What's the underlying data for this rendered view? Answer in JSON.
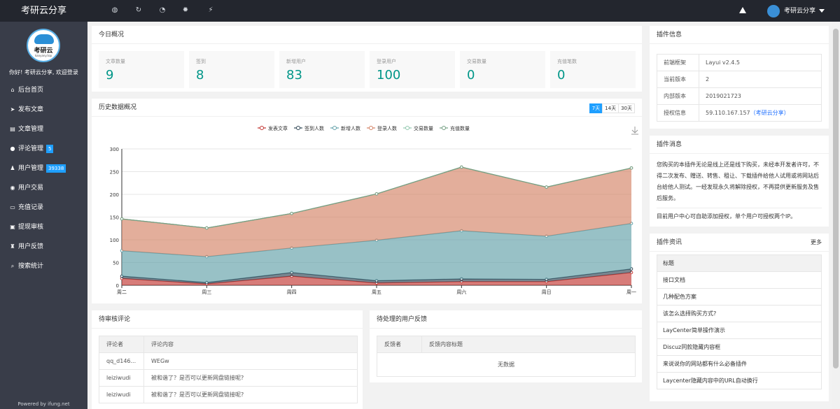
{
  "app": {
    "brand": "考研云分享",
    "user": "考研云分享",
    "powered": "Powered by ifung.net"
  },
  "topnav": {
    "icons": [
      "globe-icon",
      "refresh-icon",
      "dashboard-icon",
      "settings-icon",
      "plugin-icon"
    ]
  },
  "sidebar": {
    "logo_text": "考研云",
    "logo_sub": "kaoyany.top",
    "welcome": "你好! 考研云分享, 欢迎登录",
    "items": [
      {
        "icon": "home-icon",
        "label": "后台首页"
      },
      {
        "icon": "send-icon",
        "label": "发布文章"
      },
      {
        "icon": "book-icon",
        "label": "文章管理"
      },
      {
        "icon": "comments-icon",
        "label": "评论管理",
        "badge": "5"
      },
      {
        "icon": "users-icon",
        "label": "用户管理",
        "badge": "39338"
      },
      {
        "icon": "eye-icon",
        "label": "用户交易"
      },
      {
        "icon": "card-icon",
        "label": "充值记录"
      },
      {
        "icon": "money-icon",
        "label": "提现审核"
      },
      {
        "icon": "feedback-icon",
        "label": "用户反馈"
      },
      {
        "icon": "search-icon",
        "label": "搜索统计"
      }
    ]
  },
  "overview": {
    "title": "今日概况",
    "stats": [
      {
        "label": "文章数量",
        "value": "9"
      },
      {
        "label": "签到",
        "value": "8"
      },
      {
        "label": "新增用户",
        "value": "83"
      },
      {
        "label": "登录用户",
        "value": "100"
      },
      {
        "label": "交易数量",
        "value": "0"
      },
      {
        "label": "充值笔数",
        "value": "0"
      }
    ]
  },
  "history": {
    "title": "历史数据概况",
    "ranges": [
      "7天",
      "14天",
      "30天"
    ],
    "active_range": "7天"
  },
  "chart_data": {
    "type": "area",
    "stacked": true,
    "categories": [
      "周二",
      "周三",
      "周四",
      "周五",
      "周六",
      "周日",
      "周一"
    ],
    "ylim": [
      0,
      300
    ],
    "yticks": [
      0,
      50,
      100,
      150,
      200,
      250,
      300
    ],
    "legend_position": "top-center",
    "grid": true,
    "series": [
      {
        "name": "发表文章",
        "color": "#c23531",
        "values": [
          15,
          3,
          20,
          5,
          8,
          8,
          28
        ]
      },
      {
        "name": "签到人数",
        "color": "#2f4554",
        "values": [
          5,
          3,
          8,
          5,
          6,
          5,
          8
        ]
      },
      {
        "name": "新增人数",
        "color": "#61a0a8",
        "values": [
          56,
          57,
          54,
          89,
          106,
          95,
          100
        ]
      },
      {
        "name": "登录人数",
        "color": "#d48265",
        "values": [
          70,
          63,
          76,
          102,
          140,
          108,
          122
        ]
      },
      {
        "name": "交易数量",
        "color": "#91c7ae",
        "values": [
          0,
          0,
          0,
          0,
          0,
          0,
          0
        ]
      },
      {
        "name": "充值数量",
        "color": "#749f83",
        "values": [
          0,
          0,
          0,
          0,
          0,
          0,
          0
        ]
      }
    ]
  },
  "pending_comments": {
    "title": "待审核评论",
    "headers": [
      "评论者",
      "评论内容"
    ],
    "rows": [
      [
        "qq_d146...",
        "WEGw"
      ],
      [
        "leiziwudi",
        "被和谐了？是否可以更新网盘链接呢?"
      ],
      [
        "leiziwudi",
        "被和谐了？是否可以更新网盘链接呢?"
      ]
    ]
  },
  "pending_feedback": {
    "title": "待处理的用户反馈",
    "headers": [
      "反馈者",
      "反馈内容标题"
    ],
    "empty": "无数据"
  },
  "plugin_info": {
    "title": "插件信息",
    "rows": [
      {
        "key": "前端框架",
        "value": "Layui v2.4.5"
      },
      {
        "key": "当前版本",
        "value": "2"
      },
      {
        "key": "内部版本",
        "value": "2019021723"
      },
      {
        "key": "授权信息",
        "value": "59.110.167.157",
        "link": "（考研云分享）"
      }
    ]
  },
  "plugin_message": {
    "title": "插件消息",
    "text": "您购买的本插件无论是线上还是线下购买，未经本开发者许可，不得二次发布、赠送、转售、租让、下载插件给他人试用或将网站后台给他人测试。一经发现永久将解除授权，不再提供更新服务及售后服务。",
    "text2": "目前用户中心可自助添加授权，单个用户可授权两个IP。"
  },
  "plugin_news": {
    "title": "插件资讯",
    "more": "更多",
    "header": "标题",
    "items": [
      "接口文档",
      "几种配色方案",
      "该怎么选择购买方式?",
      "LayCenter简单操作演示",
      "Discuz同款隐藏内容框",
      "来说说你的网站都有什么必备插件",
      "Laycenter隐藏内容中的URL自动换行"
    ]
  }
}
